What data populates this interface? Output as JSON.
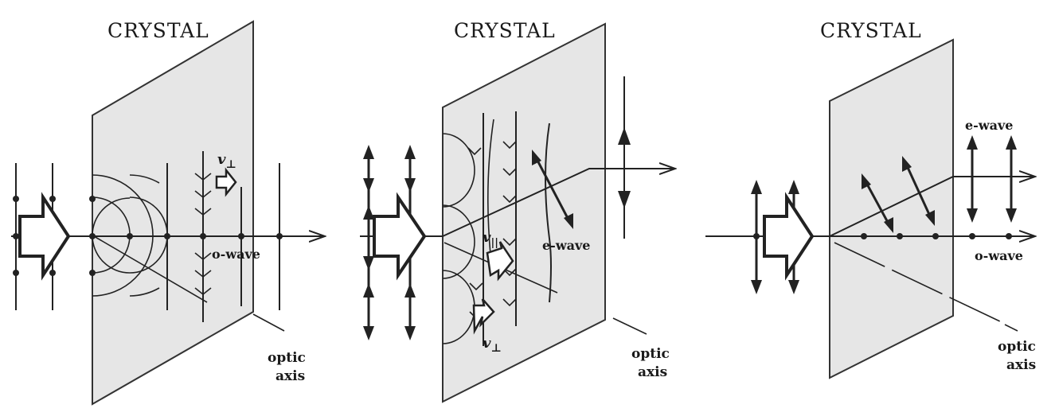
{
  "panels": [
    {
      "title": "CRYSTAL",
      "labels": {
        "wave": "o-wave",
        "optic_line1": "optic",
        "optic_line2": "axis",
        "velocity": "v",
        "velocity_sub": "⊥"
      }
    },
    {
      "title": "CRYSTAL",
      "labels": {
        "wave": "e-wave",
        "optic_line1": "optic",
        "optic_line2": "axis",
        "velocity_par": "v",
        "velocity_par_sub": "||",
        "velocity_perp": "v",
        "velocity_perp_sub": "⊥"
      }
    },
    {
      "title": "CRYSTAL",
      "labels": {
        "e_wave": "e-wave",
        "o_wave": "o-wave",
        "optic_line1": "optic",
        "optic_line2": "axis"
      }
    }
  ]
}
